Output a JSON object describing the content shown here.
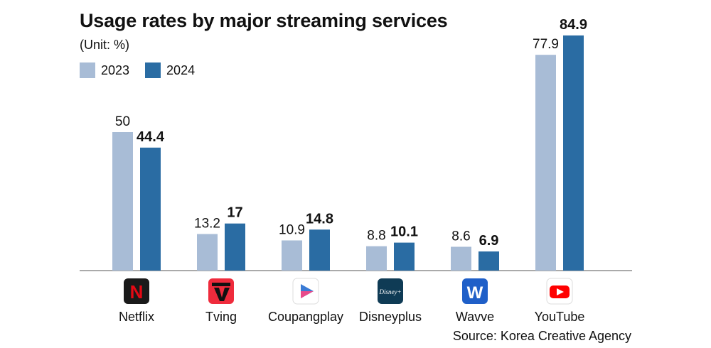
{
  "title": "Usage rates by major streaming services",
  "unit": "(Unit: %)",
  "source": "Source: Korea Creative Agency",
  "colors": {
    "2023": "#a8bcd6",
    "2024": "#2a6ca3"
  },
  "chart_data": {
    "type": "bar",
    "categories": [
      "Netflix",
      "Tving",
      "Coupangplay",
      "Disneyplus",
      "Wavve",
      "YouTube"
    ],
    "series": [
      {
        "name": "2023",
        "values": [
          50,
          13.2,
          10.9,
          8.8,
          8.6,
          77.9
        ],
        "labels": [
          "50",
          "13.2",
          "10.9",
          "8.8",
          "8.6",
          "77.9"
        ]
      },
      {
        "name": "2024",
        "values": [
          44.4,
          17,
          14.8,
          10.1,
          6.9,
          84.9
        ],
        "labels": [
          "44.4",
          "17",
          "14.8",
          "10.1",
          "6.9",
          "84.9"
        ]
      }
    ],
    "ylim": [
      0,
      90
    ],
    "legend": "top-left",
    "grid": false
  },
  "icons": [
    {
      "name": "netflix-logo-icon",
      "bg": "#1a1a1a",
      "fg": "#e50914",
      "glyph": "N"
    },
    {
      "name": "tving-logo-icon",
      "bg": "#ef2b3c",
      "fg": "#111111",
      "glyph": "TV"
    },
    {
      "name": "coupangplay-logo-icon",
      "bg": "#ffffff",
      "fg": "#3a7bd5",
      "glyph": ""
    },
    {
      "name": "disneyplus-logo-icon",
      "bg": "#0f3b55",
      "fg": "#ffffff",
      "glyph": "Disney+"
    },
    {
      "name": "wavve-logo-icon",
      "bg": "#1f5fc8",
      "fg": "#ffffff",
      "glyph": "W"
    },
    {
      "name": "youtube-logo-icon",
      "bg": "#ffffff",
      "fg": "#ff0000",
      "glyph": ""
    }
  ]
}
